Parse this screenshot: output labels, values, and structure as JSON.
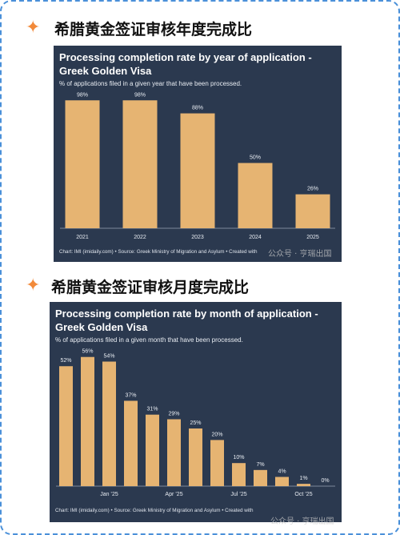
{
  "headings": [
    "希腊黄金签证审核年度完成比",
    "希腊黄金签证审核月度完成比"
  ],
  "watermarks": [
    "公众号 · 亨瑞出国",
    "公众号 · 亨瑞出国"
  ],
  "chart_data": [
    {
      "type": "bar",
      "title": "Processing completion rate by year of application - Greek Golden Visa",
      "subtitle": "% of applications filed in a given year that have been processed.",
      "source": "Chart: IMI (imidaily.com) • Source: Greek Ministry of Migration and Asylum • Created with",
      "categories": [
        "2021",
        "2022",
        "2023",
        "2024",
        "2025"
      ],
      "values": [
        98,
        98,
        88,
        50,
        26
      ],
      "value_labels": [
        "98%",
        "98%",
        "88%",
        "50%",
        "26%"
      ],
      "color": "#e6b472"
    },
    {
      "type": "bar",
      "title": "Processing completion rate by month of application - Greek Golden Visa",
      "subtitle": "% of applications filed in a given month that have been processed.",
      "source": "Chart: IMI (imidaily.com) • Source: Greek Ministry of Migration and Asylum • Created with",
      "categories": [
        null,
        null,
        "Jan ’25",
        null,
        null,
        "Apr ’25",
        null,
        null,
        "Jul ’25",
        null,
        null,
        "Oct ’25",
        null
      ],
      "values": [
        52,
        56,
        54,
        37,
        31,
        29,
        25,
        20,
        10,
        7,
        4,
        1,
        0
      ],
      "value_labels": [
        "52%",
        "56%",
        "54%",
        "37%",
        "31%",
        "29%",
        "25%",
        "20%",
        "10%",
        "7%",
        "4%",
        "1%",
        "0%"
      ],
      "color": "#e6b472"
    }
  ]
}
